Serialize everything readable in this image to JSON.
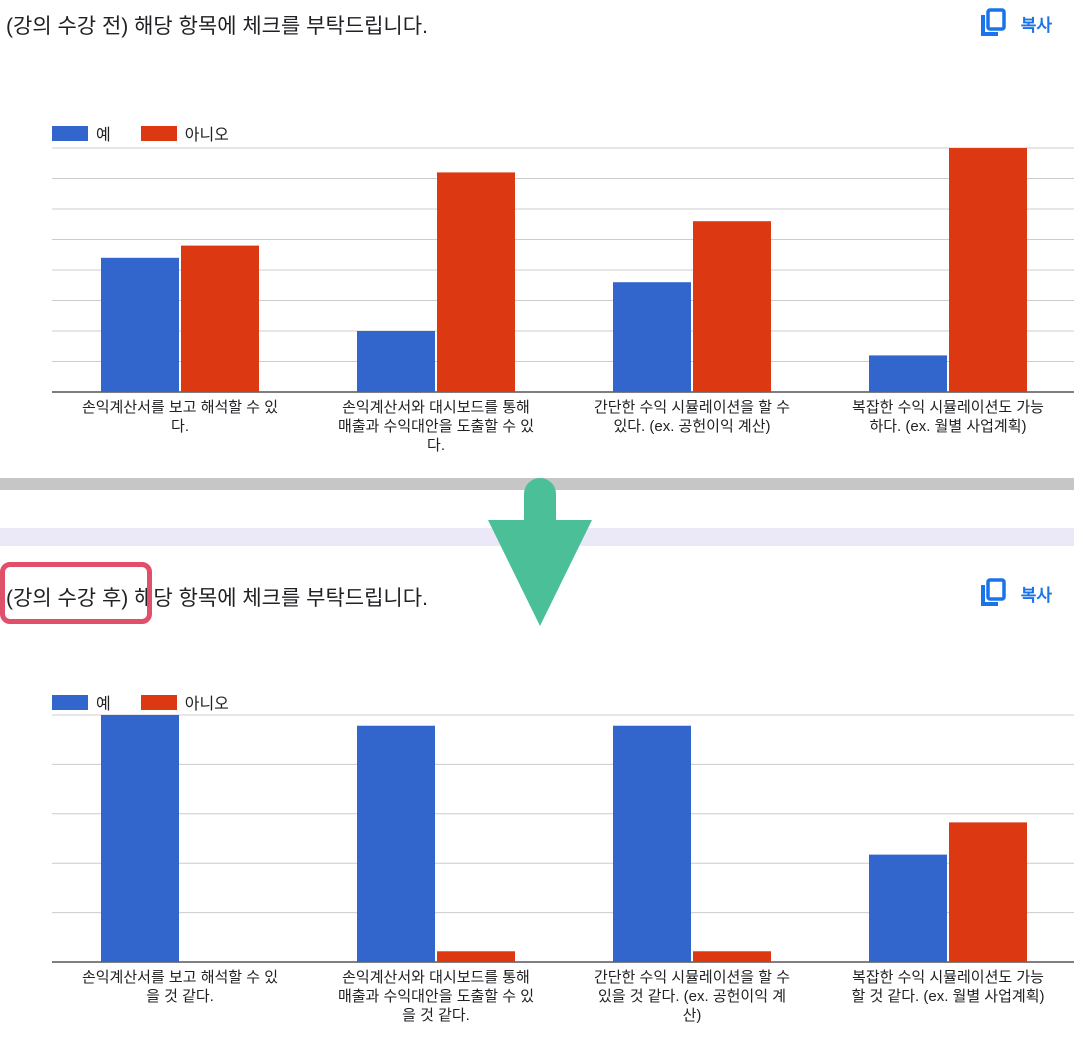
{
  "panels": [
    {
      "question": "(강의 수강 전) 해당 항목에 체크를 부탁드립니다.",
      "copy_label": "복사"
    },
    {
      "question": "(강의 수강 후) 해당 항목에 체크를 부탁드립니다.",
      "copy_label": "복사"
    }
  ],
  "colors": {
    "yes": "#3366cc",
    "no": "#dc3912",
    "accent": "#1a73e8",
    "arrow": "#4bbf97",
    "highlight": "#e0506a"
  },
  "icons": {
    "copy": "copy-icon",
    "arrow": "arrow-down-icon"
  },
  "chart_data": [
    {
      "type": "bar",
      "categories": [
        [
          "손익계산서를 보고 해석할 수 있",
          "다."
        ],
        [
          "손익계산서와 대시보드를 통해",
          "매출과 수익대안을 도출할 수 있",
          "다."
        ],
        [
          "간단한 수익 시뮬레이션을 할 수",
          "있다. (ex. 공헌이익 계산)"
        ],
        [
          "복잡한 수익 시뮬레이션도 가능",
          "하다. (ex. 월별 사업계획)"
        ]
      ],
      "series": [
        {
          "name": "예",
          "values": [
            4.4,
            2.0,
            3.6,
            1.2
          ]
        },
        {
          "name": "아니오",
          "values": [
            4.8,
            7.2,
            5.6,
            8.0
          ]
        }
      ],
      "ylim": [
        0,
        8
      ],
      "grid": true,
      "legend": "top-left"
    },
    {
      "type": "bar",
      "categories": [
        [
          "손익계산서를 보고 해석할 수 있",
          "을 것 같다."
        ],
        [
          "손익계산서와 대시보드를 통해",
          "매출과 수익대안을 도출할 수 있",
          "을 것 같다."
        ],
        [
          "간단한 수익 시뮬레이션을 할 수",
          "있을 것 같다. (ex. 공헌이익 계",
          "산)"
        ],
        [
          "복잡한 수익 시뮬레이션도 가능",
          "할 것 같다. (ex. 월별 사업계획)"
        ]
      ],
      "series": [
        {
          "name": "예",
          "values": [
            4.6,
            4.4,
            4.4,
            2.0
          ]
        },
        {
          "name": "아니오",
          "values": [
            0,
            0.2,
            0.2,
            2.6
          ]
        }
      ],
      "ylim": [
        0,
        4.6
      ],
      "grid": true,
      "legend": "top-left"
    }
  ]
}
